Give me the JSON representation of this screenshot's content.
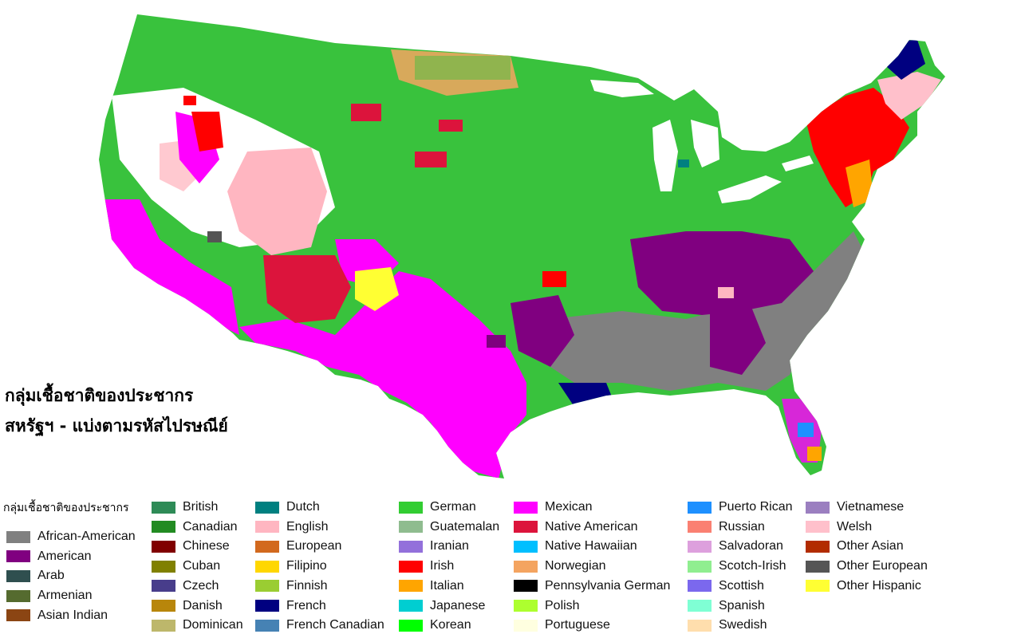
{
  "title": {
    "line1": "กลุ่มเชื้อชาติของประชากร",
    "line2": "สหรัฐฯ - แบ่งตามรหัสไปรษณีย์"
  },
  "legend": {
    "heading": "กลุ่มเชื้อชาติของประชากร",
    "columns": [
      [
        {
          "label": "African-American",
          "color": "#808080"
        },
        {
          "label": "American",
          "color": "#800080"
        },
        {
          "label": "Arab",
          "color": "#2f4f4f"
        },
        {
          "label": "Armenian",
          "color": "#556b2f"
        },
        {
          "label": "Asian Indian",
          "color": "#8b4513"
        }
      ],
      [
        {
          "label": "British",
          "color": "#2e8b57"
        },
        {
          "label": "Canadian",
          "color": "#228b22"
        },
        {
          "label": "Chinese",
          "color": "#800000"
        },
        {
          "label": "Cuban",
          "color": "#808000"
        },
        {
          "label": "Czech",
          "color": "#483d8b"
        },
        {
          "label": "Danish",
          "color": "#b8860b"
        },
        {
          "label": "Dominican",
          "color": "#bdb76b"
        }
      ],
      [
        {
          "label": "Dutch",
          "color": "#008080"
        },
        {
          "label": "English",
          "color": "#ffb6c1"
        },
        {
          "label": "European",
          "color": "#d2691e"
        },
        {
          "label": "Filipino",
          "color": "#ffd700"
        },
        {
          "label": "Finnish",
          "color": "#9acd32"
        },
        {
          "label": "French",
          "color": "#000080"
        },
        {
          "label": "French Canadian",
          "color": "#4682b4"
        }
      ],
      [
        {
          "label": "German",
          "color": "#32cd32"
        },
        {
          "label": "Guatemalan",
          "color": "#8fbc8f"
        },
        {
          "label": "Iranian",
          "color": "#9370db"
        },
        {
          "label": "Irish",
          "color": "#ff0000"
        },
        {
          "label": "Italian",
          "color": "#ffa500"
        },
        {
          "label": "Japanese",
          "color": "#00ced1"
        },
        {
          "label": "Korean",
          "color": "#00ff00"
        }
      ],
      [
        {
          "label": "Mexican",
          "color": "#ff00ff"
        },
        {
          "label": "Native American",
          "color": "#dc143c"
        },
        {
          "label": "Native Hawaiian",
          "color": "#00bfff"
        },
        {
          "label": "Norwegian",
          "color": "#f4a460"
        },
        {
          "label": "Pennsylvania German",
          "color": "#000000"
        },
        {
          "label": "Polish",
          "color": "#adff2f"
        },
        {
          "label": "Portuguese",
          "color": "#ffffe0"
        }
      ],
      [
        {
          "label": "Puerto Rican",
          "color": "#1e90ff"
        },
        {
          "label": "Russian",
          "color": "#fa8072"
        },
        {
          "label": "Salvadoran",
          "color": "#dda0dd"
        },
        {
          "label": "Scotch-Irish",
          "color": "#90ee90"
        },
        {
          "label": "Scottish",
          "color": "#7b68ee"
        },
        {
          "label": "Spanish",
          "color": "#7fffd4"
        },
        {
          "label": "Swedish",
          "color": "#ffdead"
        }
      ],
      [
        {
          "label": "Vietnamese",
          "color": "#9b7fc0"
        },
        {
          "label": "Welsh",
          "color": "#ffc0cb"
        },
        {
          "label": "Other Asian",
          "color": "#b22c00"
        },
        {
          "label": "Other European",
          "color": "#555555"
        },
        {
          "label": "Other Hispanic",
          "color": "#ffff33"
        }
      ]
    ]
  }
}
